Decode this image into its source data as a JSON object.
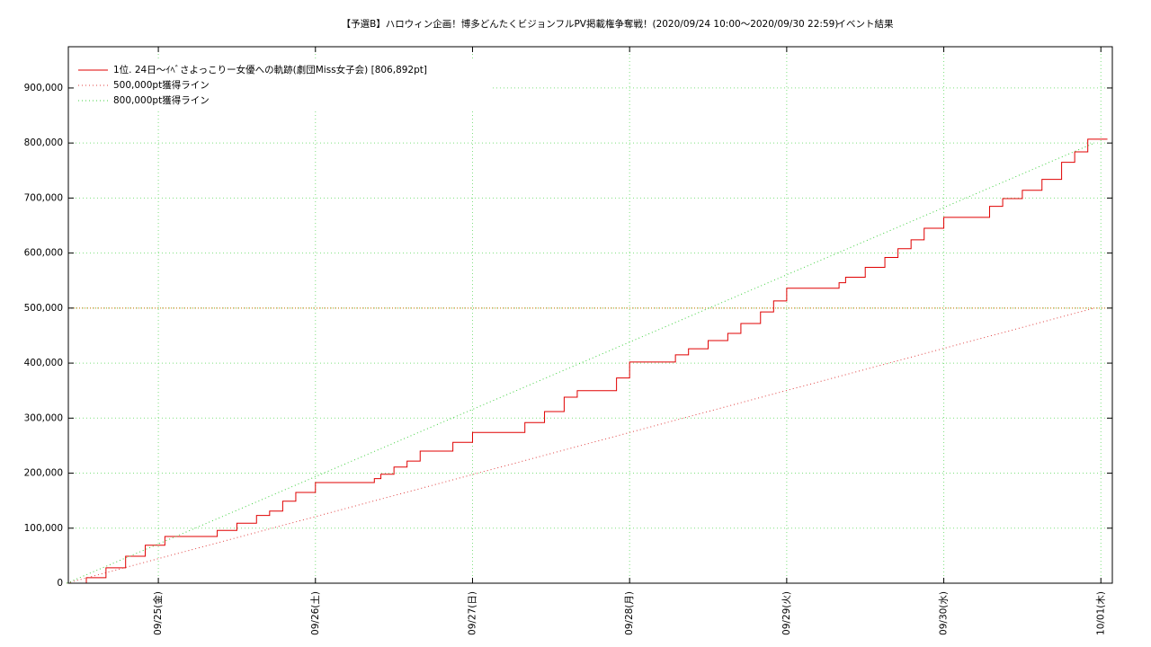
{
  "chart_data": {
    "type": "line",
    "title": "【予選B】ハロウィン企画！博多どんたくビジョンフルPV掲載権争奪戦！(2020/09/24 10:00〜2020/09/30 22:59)",
    "subtitle": "イベント結果",
    "step": true,
    "grid": true,
    "legend": "upper left",
    "xlim": [
      "09/24 10:15",
      "10/01 01:45"
    ],
    "xticks": [
      {
        "value": "09/25 00:00",
        "label": "09/25(金)"
      },
      {
        "value": "09/26 00:00",
        "label": "09/26(土)"
      },
      {
        "value": "09/27 00:00",
        "label": "09/27(日)"
      },
      {
        "value": "09/28 00:00",
        "label": "09/28(月)"
      },
      {
        "value": "09/29 00:00",
        "label": "09/29(火)"
      },
      {
        "value": "09/30 00:00",
        "label": "09/30(水)"
      },
      {
        "value": "10/01 00:00",
        "label": "10/01(木)"
      }
    ],
    "ylim": [
      0,
      975000
    ],
    "yticks": [
      0,
      {
        "value": 100000,
        "label": "100,000"
      },
      {
        "value": 200000,
        "label": "200,000"
      },
      {
        "value": 300000,
        "label": "300,000"
      },
      {
        "value": 400000,
        "label": "400,000"
      },
      {
        "value": 500000,
        "label": "500,000"
      },
      {
        "value": 600000,
        "label": "600,000"
      },
      {
        "value": 700000,
        "label": "700,000"
      },
      {
        "value": 800000,
        "label": "800,000"
      },
      {
        "value": 900000,
        "label": "900,000"
      }
    ],
    "hlines": [
      {
        "value": 500000,
        "color": "#d07000"
      }
    ],
    "series": [
      {
        "name": "1位. 24日〜ｲﾍﾞさよっこりー女優への軌跡(劇団Miss女子会) [806,892pt]",
        "color": "#e00000",
        "style": "solid",
        "x": [
          "09/24 12:00",
          "09/24 13:00",
          "09/24 16:00",
          "09/24 19:00",
          "09/24 22:00",
          "09/25 01:00",
          "09/25 09:00",
          "09/25 12:00",
          "09/25 15:00",
          "09/25 17:00",
          "09/25 19:00",
          "09/25 21:00",
          "09/26 00:00",
          "09/26 09:00",
          "09/26 10:00",
          "09/26 12:00",
          "09/26 14:00",
          "09/26 16:00",
          "09/26 21:00",
          "09/27 00:00",
          "09/27 08:00",
          "09/27 11:00",
          "09/27 14:00",
          "09/27 16:00",
          "09/27 22:00",
          "09/28 00:00",
          "09/28 07:00",
          "09/28 09:00",
          "09/28 12:00",
          "09/28 15:00",
          "09/28 17:00",
          "09/28 20:00",
          "09/28 22:00",
          "09/29 00:00",
          "09/29 08:00",
          "09/29 09:00",
          "09/29 12:00",
          "09/29 15:00",
          "09/29 17:00",
          "09/29 19:00",
          "09/29 21:00",
          "09/30 00:00",
          "09/30 07:00",
          "09/30 09:00",
          "09/30 12:00",
          "09/30 15:00",
          "09/30 18:00",
          "09/30 20:00",
          "09/30 22:00",
          "10/01 01:00"
        ],
        "values": [
          0,
          10000,
          28000,
          49000,
          69000,
          85000,
          96000,
          109000,
          123000,
          131000,
          149000,
          165000,
          183000,
          190000,
          198000,
          211000,
          222000,
          240000,
          256000,
          274000,
          292000,
          312000,
          338000,
          350000,
          373000,
          402000,
          415000,
          426000,
          441000,
          454000,
          472000,
          493000,
          513000,
          536000,
          546000,
          556000,
          574000,
          592000,
          608000,
          624000,
          645000,
          665000,
          685000,
          699000,
          714000,
          734000,
          765000,
          784000,
          806892,
          806892
        ]
      },
      {
        "name": "500,000pt獲得ライン",
        "color": "#e04040",
        "style": "dotted",
        "x": [
          "09/24 10:00",
          "09/30 23:00"
        ],
        "values": [
          0,
          500000
        ]
      },
      {
        "name": "800,000pt獲得ライン",
        "color": "#40d040",
        "style": "dotted",
        "x": [
          "09/24 10:00",
          "09/30 23:00"
        ],
        "values": [
          0,
          800000
        ]
      }
    ]
  }
}
